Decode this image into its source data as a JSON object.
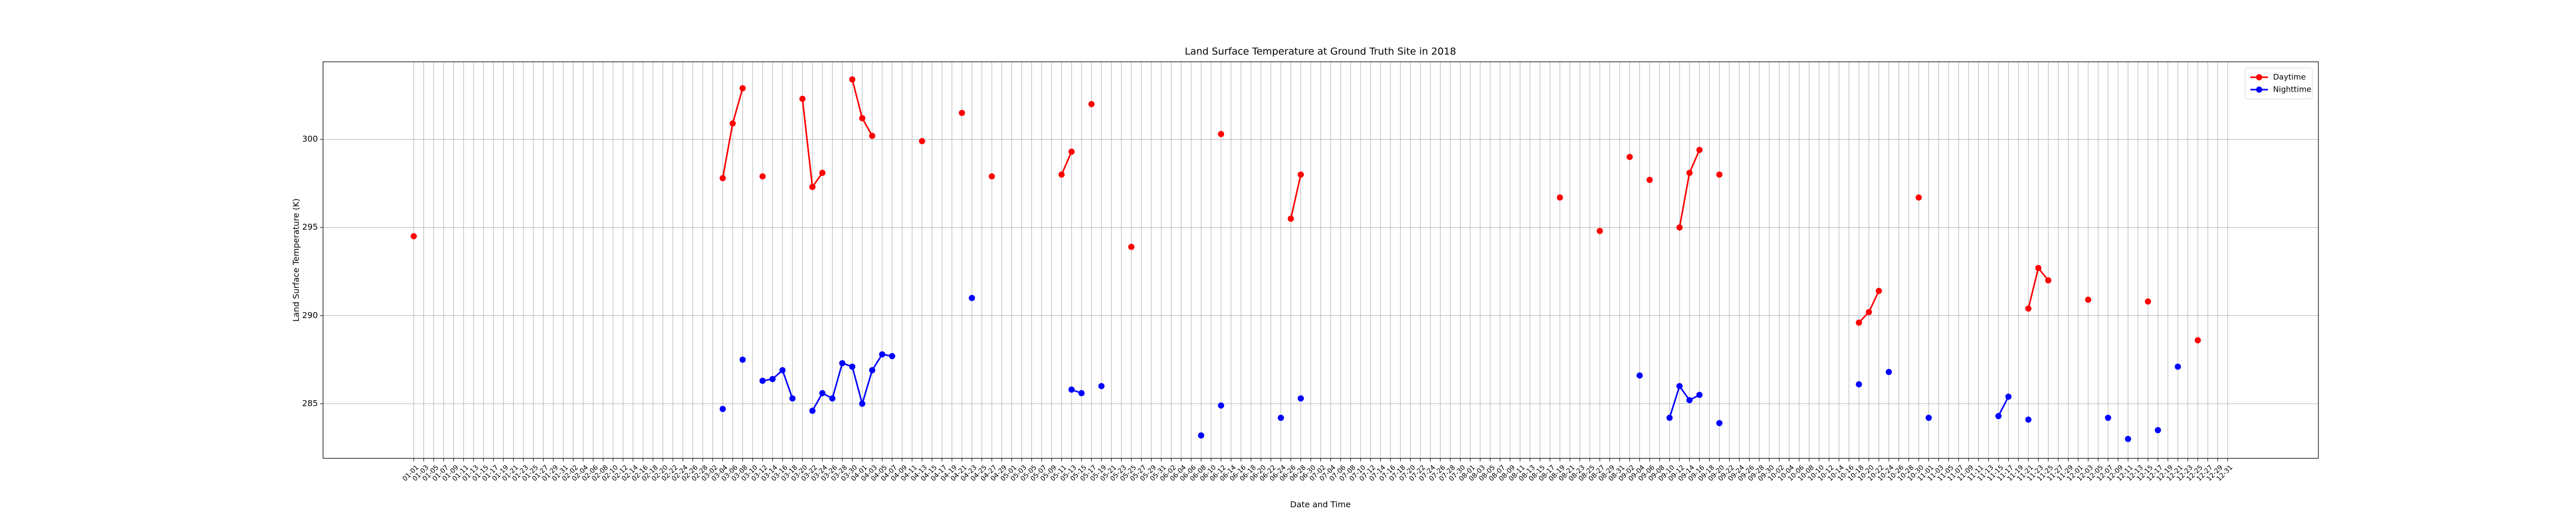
{
  "chart_data": {
    "type": "line",
    "title": "Land Surface Temperature at Ground Truth Site in 2018",
    "x_label": "Date and Time",
    "y_label": "Land Surface Temperature (K)",
    "categories": [
      "01-01",
      "01-03",
      "01-05",
      "01-07",
      "01-09",
      "01-11",
      "01-13",
      "01-15",
      "01-17",
      "01-19",
      "01-21",
      "01-23",
      "01-25",
      "01-27",
      "01-29",
      "01-31",
      "02-02",
      "02-04",
      "02-06",
      "02-08",
      "02-10",
      "02-12",
      "02-14",
      "02-16",
      "02-18",
      "02-20",
      "02-22",
      "02-24",
      "02-26",
      "02-28",
      "03-02",
      "03-04",
      "03-06",
      "03-08",
      "03-10",
      "03-12",
      "03-14",
      "03-16",
      "03-18",
      "03-20",
      "03-22",
      "03-24",
      "03-26",
      "03-28",
      "03-30",
      "04-01",
      "04-03",
      "04-05",
      "04-07",
      "04-09",
      "04-11",
      "04-13",
      "04-15",
      "04-17",
      "04-19",
      "04-21",
      "04-23",
      "04-25",
      "04-27",
      "04-29",
      "05-01",
      "05-03",
      "05-05",
      "05-07",
      "05-09",
      "05-11",
      "05-13",
      "05-15",
      "05-17",
      "05-19",
      "05-21",
      "05-23",
      "05-25",
      "05-27",
      "05-29",
      "05-31",
      "06-02",
      "06-04",
      "06-06",
      "06-08",
      "06-10",
      "06-12",
      "06-14",
      "06-16",
      "06-18",
      "06-20",
      "06-22",
      "06-24",
      "06-26",
      "06-28",
      "06-30",
      "07-02",
      "07-04",
      "07-06",
      "07-08",
      "07-10",
      "07-12",
      "07-14",
      "07-16",
      "07-18",
      "07-20",
      "07-22",
      "07-24",
      "07-26",
      "07-28",
      "07-30",
      "08-01",
      "08-03",
      "08-05",
      "08-07",
      "08-09",
      "08-11",
      "08-13",
      "08-15",
      "08-17",
      "08-19",
      "08-21",
      "08-23",
      "08-25",
      "08-27",
      "08-29",
      "08-31",
      "09-02",
      "09-04",
      "09-06",
      "09-08",
      "09-10",
      "09-12",
      "09-14",
      "09-16",
      "09-18",
      "09-20",
      "09-22",
      "09-24",
      "09-26",
      "09-28",
      "09-30",
      "10-02",
      "10-04",
      "10-06",
      "10-08",
      "10-10",
      "10-12",
      "10-14",
      "10-16",
      "10-18",
      "10-20",
      "10-22",
      "10-24",
      "10-26",
      "10-28",
      "10-30",
      "11-01",
      "11-03",
      "11-05",
      "11-07",
      "11-09",
      "11-11",
      "11-13",
      "11-15",
      "11-17",
      "11-19",
      "11-21",
      "11-23",
      "11-25",
      "11-27",
      "11-29",
      "12-01",
      "12-03",
      "12-05",
      "12-07",
      "12-09",
      "12-11",
      "12-13",
      "12-15",
      "12-17",
      "12-19",
      "12-21",
      "12-23",
      "12-25",
      "12-27",
      "12-29",
      "12-31"
    ],
    "series": [
      {
        "name": "Daytime",
        "color": "#ff0000",
        "values": [
          294.5,
          null,
          null,
          null,
          null,
          null,
          null,
          null,
          null,
          null,
          null,
          null,
          null,
          null,
          null,
          null,
          null,
          null,
          null,
          null,
          null,
          null,
          null,
          null,
          null,
          null,
          null,
          null,
          null,
          null,
          null,
          297.8,
          300.9,
          302.9,
          null,
          297.9,
          null,
          null,
          null,
          302.3,
          297.3,
          298.1,
          null,
          null,
          303.4,
          301.2,
          300.2,
          null,
          null,
          null,
          null,
          299.9,
          null,
          null,
          null,
          301.5,
          null,
          null,
          297.9,
          null,
          null,
          null,
          null,
          null,
          null,
          298.0,
          299.3,
          null,
          302.0,
          null,
          null,
          null,
          293.9,
          null,
          null,
          null,
          null,
          null,
          null,
          null,
          null,
          300.3,
          null,
          null,
          null,
          null,
          null,
          null,
          295.5,
          298.0,
          null,
          null,
          null,
          null,
          null,
          null,
          null,
          null,
          null,
          null,
          null,
          null,
          null,
          null,
          null,
          null,
          null,
          null,
          null,
          null,
          null,
          null,
          null,
          null,
          null,
          296.7,
          null,
          null,
          null,
          294.8,
          null,
          null,
          299.0,
          null,
          297.7,
          null,
          null,
          295.0,
          298.1,
          299.4,
          null,
          298.0,
          null,
          null,
          null,
          null,
          null,
          null,
          null,
          null,
          null,
          null,
          null,
          null,
          null,
          289.6,
          290.2,
          291.4,
          null,
          null,
          null,
          296.7,
          null,
          null,
          null,
          null,
          null,
          null,
          null,
          null,
          null,
          null,
          290.4,
          292.7,
          292.0,
          null,
          null,
          null,
          290.9,
          null,
          null,
          null,
          null,
          null,
          290.8,
          null,
          null,
          null,
          null,
          288.6,
          null,
          null,
          null
        ]
      },
      {
        "name": "Nighttime",
        "color": "#0000ff",
        "values": [
          null,
          null,
          null,
          null,
          null,
          null,
          null,
          null,
          null,
          null,
          null,
          null,
          null,
          null,
          null,
          null,
          null,
          null,
          null,
          null,
          null,
          null,
          null,
          null,
          null,
          null,
          null,
          null,
          null,
          null,
          null,
          284.7,
          null,
          287.5,
          null,
          286.3,
          286.4,
          286.9,
          285.3,
          null,
          284.6,
          285.6,
          285.3,
          287.3,
          287.1,
          285.0,
          286.9,
          287.8,
          287.7,
          null,
          null,
          null,
          null,
          null,
          null,
          null,
          291.0,
          null,
          null,
          null,
          null,
          null,
          null,
          null,
          null,
          null,
          285.8,
          285.6,
          null,
          286.0,
          null,
          null,
          null,
          null,
          null,
          null,
          null,
          null,
          null,
          283.2,
          null,
          284.9,
          null,
          null,
          null,
          null,
          null,
          284.2,
          null,
          285.3,
          null,
          null,
          null,
          null,
          null,
          null,
          null,
          null,
          null,
          null,
          null,
          null,
          null,
          null,
          null,
          null,
          null,
          null,
          null,
          null,
          null,
          null,
          null,
          null,
          null,
          null,
          null,
          null,
          null,
          null,
          null,
          null,
          null,
          286.6,
          null,
          null,
          284.2,
          286.0,
          285.2,
          285.5,
          null,
          283.9,
          null,
          null,
          null,
          null,
          null,
          null,
          null,
          null,
          null,
          null,
          null,
          null,
          null,
          286.1,
          null,
          null,
          286.8,
          null,
          null,
          null,
          284.2,
          null,
          null,
          null,
          null,
          null,
          null,
          284.3,
          285.4,
          null,
          284.1,
          null,
          null,
          null,
          null,
          null,
          null,
          null,
          284.2,
          null,
          283.0,
          null,
          null,
          283.5,
          null,
          287.1,
          null,
          null,
          null,
          null,
          null
        ]
      }
    ],
    "ylim": [
      281.9,
      304.4
    ],
    "yticks": [
      285,
      290,
      295,
      300
    ],
    "grid": true,
    "legend": "upper right"
  }
}
